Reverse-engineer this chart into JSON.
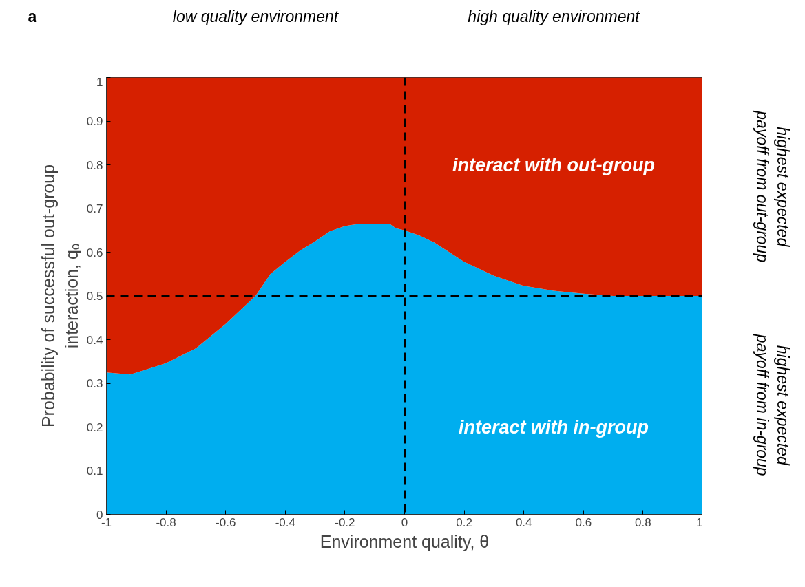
{
  "chart_data": {
    "type": "area",
    "stacked": true,
    "xlabel": "Environment quality, θ",
    "ylabel": "Probability of successful out-group\ninteraction, qₒ",
    "x": [
      -1,
      -0.92,
      -0.8,
      -0.7,
      -0.6,
      -0.5,
      -0.45,
      -0.4,
      -0.35,
      -0.3,
      -0.25,
      -0.2,
      -0.15,
      -0.05,
      -0.03,
      0,
      0.05,
      0.1,
      0.2,
      0.3,
      0.4,
      0.5,
      0.6,
      0.7,
      0.8,
      0.9,
      1
    ],
    "series": [
      {
        "name": "interact with in-group",
        "color": "#00aeef",
        "values": [
          0.325,
          0.32,
          0.346,
          0.38,
          0.436,
          0.5,
          0.55,
          0.578,
          0.604,
          0.625,
          0.648,
          0.66,
          0.665,
          0.665,
          0.655,
          0.65,
          0.638,
          0.622,
          0.578,
          0.546,
          0.523,
          0.512,
          0.505,
          0.5,
          0.5,
          0.5,
          0.5
        ]
      },
      {
        "name": "interact with out-group",
        "color": "#d62000",
        "values": [
          0.675,
          0.68,
          0.654,
          0.62,
          0.564,
          0.5,
          0.45,
          0.422,
          0.396,
          0.375,
          0.352,
          0.34,
          0.335,
          0.335,
          0.345,
          0.35,
          0.362,
          0.378,
          0.422,
          0.454,
          0.477,
          0.488,
          0.495,
          0.5,
          0.5,
          0.5,
          0.5
        ]
      }
    ],
    "xlim": [
      -1,
      1
    ],
    "ylim": [
      0,
      1
    ],
    "xticks": [
      -1,
      -0.8,
      -0.6,
      -0.4,
      -0.2,
      0,
      0.2,
      0.4,
      0.6,
      0.8,
      1
    ],
    "yticks": [
      0,
      0.1,
      0.2,
      0.3,
      0.4,
      0.5,
      0.6,
      0.7,
      0.8,
      0.9,
      1
    ],
    "grid": false,
    "legend": false,
    "ref_lines": [
      {
        "axis": "x",
        "value": 0,
        "color": "#000000",
        "line_style": "dashed"
      },
      {
        "axis": "y",
        "value": 0.5,
        "color": "#000000",
        "line_style": "dashed"
      }
    ],
    "annotations": [
      "a",
      "low quality environment",
      "high quality environment",
      "highest expected\npayoff from out-group",
      "highest expected\npayoff from in-group"
    ]
  }
}
